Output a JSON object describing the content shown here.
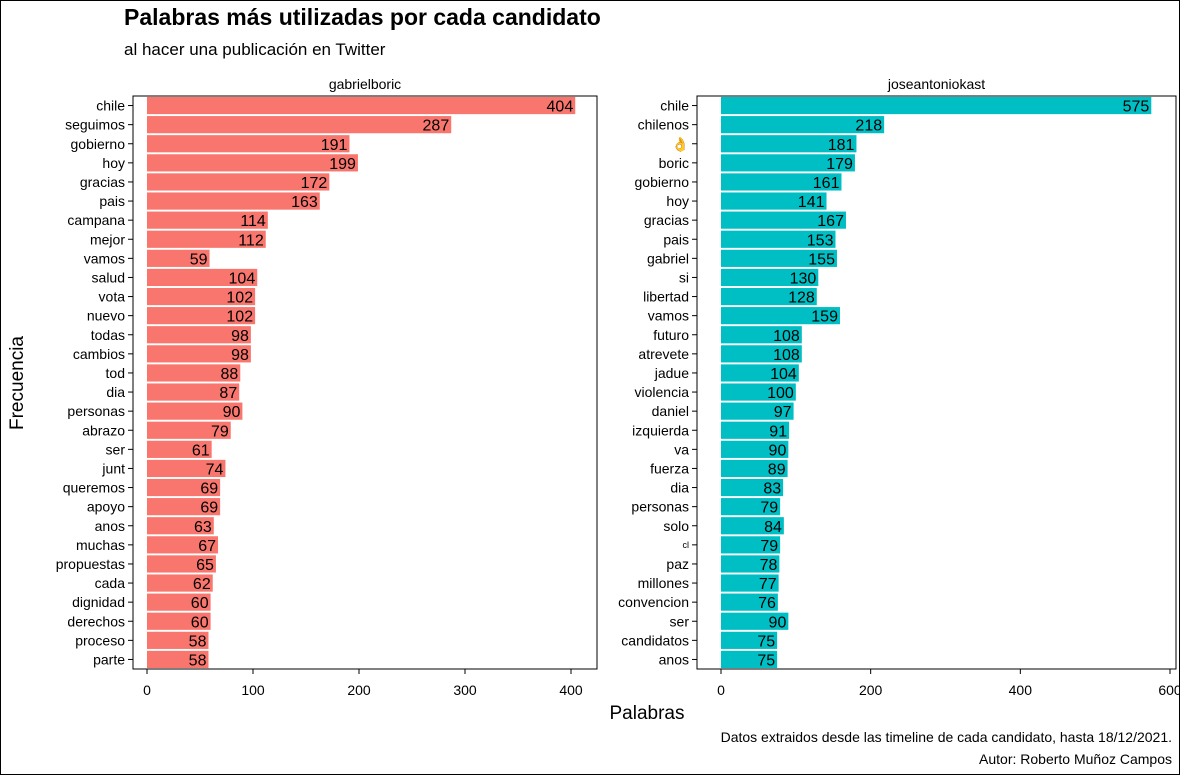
{
  "title": "Palabras más utilizadas por cada candidato",
  "subtitle": "al hacer una publicación en Twitter",
  "caption_lines": [
    "Datos extraidos desde las timeline de cada candidato, hasta 18/12/2021.",
    "Autor: Roberto Muñoz Campos"
  ],
  "chart_data": {
    "type": "bar",
    "orientation": "horizontal",
    "xlabel": "Palabras",
    "ylabel": "Frecuencia",
    "grid": false,
    "legend": "none",
    "panels": [
      {
        "name": "gabrielboric",
        "color": "#F8766D",
        "xlim": [
          0,
          420
        ],
        "ticks": [
          0,
          100,
          200,
          300,
          400
        ],
        "categories": [
          "chile",
          "seguimos",
          "gobierno",
          "hoy",
          "gracias",
          "pais",
          "campana",
          "mejor",
          "vamos",
          "salud",
          "vota",
          "nuevo",
          "todas",
          "cambios",
          "tod",
          "dia",
          "personas",
          "abrazo",
          "ser",
          "junt",
          "queremos",
          "apoyo",
          "anos",
          "muchas",
          "propuestas",
          "cada",
          "dignidad",
          "derechos",
          "proceso",
          "parte"
        ],
        "values": [
          404,
          287,
          191,
          199,
          172,
          163,
          114,
          112,
          59,
          104,
          102,
          102,
          98,
          98,
          88,
          87,
          90,
          79,
          61,
          74,
          69,
          69,
          63,
          67,
          65,
          62,
          60,
          60,
          58,
          58
        ]
      },
      {
        "name": "joseantoniokast",
        "color": "#00BFC4",
        "xlim": [
          0,
          600
        ],
        "ticks": [
          0,
          200,
          400,
          600
        ],
        "categories": [
          "chile",
          "chilenos",
          "👌",
          "boric",
          "gobierno",
          "hoy",
          "gracias",
          "pais",
          "gabriel",
          "si",
          "libertad",
          "vamos",
          "futuro",
          "atrevete",
          "jadue",
          "violencia",
          "daniel",
          "izquierda",
          "va",
          "fuerza",
          "dia",
          "personas",
          "solo",
          "cl",
          "paz",
          "millones",
          "convencion",
          "ser",
          "candidatos",
          "anos"
        ],
        "values": [
          575,
          218,
          181,
          179,
          161,
          141,
          167,
          153,
          155,
          130,
          128,
          159,
          108,
          108,
          104,
          100,
          97,
          91,
          90,
          89,
          83,
          79,
          84,
          79,
          78,
          77,
          76,
          90,
          75,
          75
        ]
      }
    ]
  }
}
